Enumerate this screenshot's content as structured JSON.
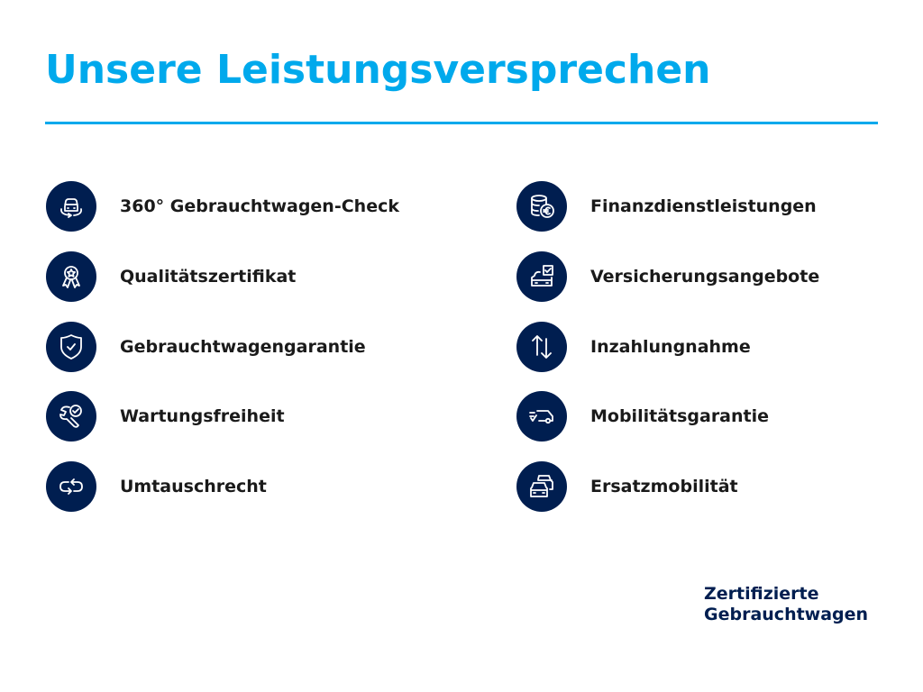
{
  "title": "Unsere Leistungsversprechen",
  "colors": {
    "accent": "#00a9ec",
    "icon_bg": "#001e50",
    "text": "#1a1a1a"
  },
  "left_items": [
    {
      "label": "360° Gebrauchtwagen-Check",
      "icon": "car-rotate-icon"
    },
    {
      "label": "Qualitätszertifikat",
      "icon": "award-ribbon-icon"
    },
    {
      "label": "Gebrauchtwagengarantie",
      "icon": "shield-check-icon"
    },
    {
      "label": "Wartungsfreiheit",
      "icon": "wrench-check-icon"
    },
    {
      "label": "Umtauschrecht",
      "icon": "exchange-arrows-icon"
    }
  ],
  "right_items": [
    {
      "label": "Finanzdienstleistungen",
      "icon": "coins-euro-icon"
    },
    {
      "label": "Versicherungsangebote",
      "icon": "car-document-check-icon"
    },
    {
      "label": "Inzahlungnahme",
      "icon": "up-down-arrows-icon"
    },
    {
      "label": "Mobilitätsgarantie",
      "icon": "van-check-icon"
    },
    {
      "label": "Ersatzmobilität",
      "icon": "two-cars-icon"
    }
  ],
  "footer": {
    "line1": "Zertifizierte",
    "line2": "Gebrauchtwagen"
  }
}
